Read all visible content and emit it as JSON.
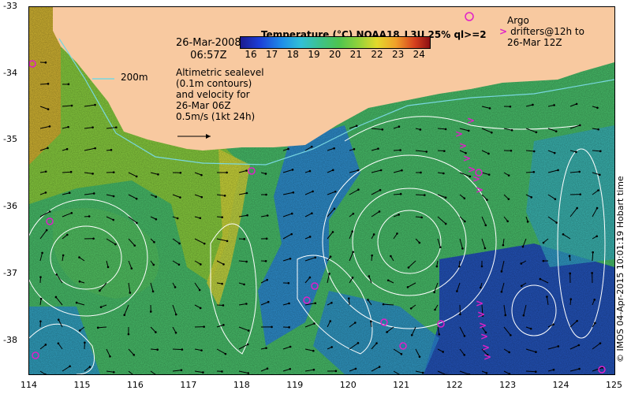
{
  "title": "Temperature (°C) NOAA18_L3U 25% ql>=2",
  "date_line1": "26-Mar-2008",
  "date_line2": "06:57Z",
  "altimetry_lines": [
    "Altimetric sealevel",
    "(0.1m contours)",
    "and velocity for",
    "26-Mar 06Z",
    "0.5m/s (1kt 24h)"
  ],
  "contour_label": "200m",
  "argo_lines": [
    "Argo",
    "drifters@12h to",
    "26-Mar 12Z"
  ],
  "argo_marker": ">",
  "colorbar_ticks": [
    "16",
    "17",
    "18",
    "19",
    "20",
    "21",
    "22",
    "23",
    "24"
  ],
  "x_ticks": [
    "114",
    "115",
    "116",
    "117",
    "118",
    "119",
    "120",
    "121",
    "122",
    "123",
    "124",
    "125"
  ],
  "y_ticks": [
    "-33",
    "-34",
    "-35",
    "-36",
    "-37",
    "-38"
  ],
  "credit": "© IMOS 04-Apr-2015 10:01:19 Hobart time",
  "colors": {
    "land": "#f8c9a0",
    "contour": "#ffffff",
    "shelf_contour": "#79d7e0",
    "argo": "#e020c8",
    "arrow": "#000000"
  },
  "map_extent": {
    "lon": [
      114,
      125
    ],
    "lat": [
      -38.5,
      -33
    ]
  },
  "colorbar_range": [
    15.5,
    24.5
  ]
}
